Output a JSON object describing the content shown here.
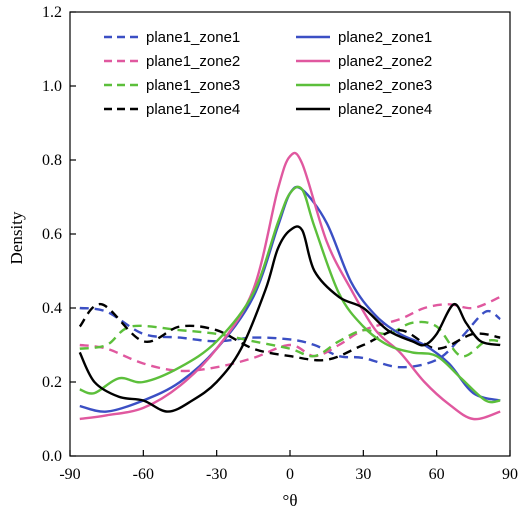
{
  "chart_data": {
    "type": "line",
    "title": "",
    "xlabel": "°θ",
    "ylabel": "Density",
    "xlim": [
      -90,
      90
    ],
    "ylim": [
      0,
      1.2
    ],
    "x_ticks": [
      -90,
      -60,
      -30,
      0,
      30,
      60,
      90
    ],
    "y_ticks": [
      0.0,
      0.2,
      0.4,
      0.6,
      0.8,
      1.0,
      1.2
    ],
    "x_tick_labels": [
      "-90",
      "-60",
      "-30",
      "0",
      "30",
      "60",
      "90"
    ],
    "y_tick_labels": [
      "0.0",
      "0.2",
      "0.4",
      "0.6",
      "0.8",
      "1.0",
      "1.2"
    ],
    "grid": false,
    "legend_position": "top",
    "series": [
      {
        "name": "plane1_zone1",
        "color": "#3b4fc4",
        "dash": "dashed",
        "x": [
          -86,
          -75,
          -60,
          -45,
          -30,
          -15,
          0,
          10,
          20,
          30,
          45,
          60,
          70,
          80,
          86
        ],
        "y": [
          0.4,
          0.39,
          0.33,
          0.32,
          0.31,
          0.32,
          0.315,
          0.3,
          0.27,
          0.265,
          0.24,
          0.26,
          0.32,
          0.39,
          0.37
        ]
      },
      {
        "name": "plane1_zone2",
        "color": "#e0589f",
        "dash": "dashed",
        "x": [
          -86,
          -75,
          -60,
          -45,
          -30,
          -15,
          0,
          10,
          20,
          30,
          45,
          55,
          65,
          75,
          86
        ],
        "y": [
          0.3,
          0.29,
          0.25,
          0.23,
          0.24,
          0.265,
          0.3,
          0.27,
          0.3,
          0.34,
          0.37,
          0.4,
          0.41,
          0.4,
          0.43
        ]
      },
      {
        "name": "plane1_zone3",
        "color": "#5cbf3b",
        "dash": "dashed",
        "x": [
          -86,
          -75,
          -65,
          -45,
          -30,
          -15,
          0,
          10,
          20,
          30,
          40,
          50,
          60,
          70,
          80,
          86
        ],
        "y": [
          0.29,
          0.3,
          0.35,
          0.34,
          0.33,
          0.31,
          0.29,
          0.27,
          0.31,
          0.34,
          0.33,
          0.36,
          0.35,
          0.27,
          0.31,
          0.31
        ]
      },
      {
        "name": "plane1_zone4",
        "color": "#000000",
        "dash": "dashed",
        "x": [
          -86,
          -77,
          -60,
          -45,
          -30,
          -15,
          0,
          15,
          30,
          45,
          60,
          75,
          86
        ],
        "y": [
          0.35,
          0.41,
          0.31,
          0.35,
          0.34,
          0.29,
          0.27,
          0.26,
          0.3,
          0.34,
          0.29,
          0.33,
          0.32
        ]
      },
      {
        "name": "plane2_zone1",
        "color": "#3b4fc4",
        "dash": "solid",
        "x": [
          -86,
          -75,
          -60,
          -45,
          -30,
          -15,
          -5,
          0,
          5,
          15,
          25,
          35,
          45,
          55,
          65,
          75,
          86
        ],
        "y": [
          0.135,
          0.12,
          0.15,
          0.2,
          0.29,
          0.43,
          0.62,
          0.71,
          0.72,
          0.63,
          0.47,
          0.38,
          0.33,
          0.3,
          0.25,
          0.17,
          0.15
        ]
      },
      {
        "name": "plane2_zone2",
        "color": "#e0589f",
        "dash": "solid",
        "x": [
          -86,
          -75,
          -60,
          -45,
          -30,
          -15,
          -5,
          0,
          5,
          15,
          25,
          35,
          45,
          55,
          65,
          75,
          86
        ],
        "y": [
          0.1,
          0.11,
          0.13,
          0.19,
          0.29,
          0.45,
          0.72,
          0.81,
          0.79,
          0.58,
          0.45,
          0.34,
          0.28,
          0.2,
          0.14,
          0.1,
          0.12
        ]
      },
      {
        "name": "plane2_zone3",
        "color": "#5cbf3b",
        "dash": "solid",
        "x": [
          -86,
          -80,
          -70,
          -60,
          -45,
          -30,
          -15,
          -5,
          0,
          5,
          10,
          20,
          30,
          40,
          50,
          60,
          70,
          80,
          86
        ],
        "y": [
          0.18,
          0.17,
          0.21,
          0.2,
          0.24,
          0.31,
          0.44,
          0.63,
          0.71,
          0.72,
          0.62,
          0.44,
          0.35,
          0.3,
          0.28,
          0.27,
          0.21,
          0.15,
          0.15
        ]
      },
      {
        "name": "plane2_zone4",
        "color": "#000000",
        "dash": "solid",
        "x": [
          -86,
          -80,
          -70,
          -60,
          -50,
          -40,
          -30,
          -20,
          -10,
          -5,
          0,
          5,
          10,
          20,
          30,
          40,
          50,
          55,
          60,
          67,
          72,
          78,
          86
        ],
        "y": [
          0.28,
          0.2,
          0.16,
          0.15,
          0.12,
          0.15,
          0.2,
          0.29,
          0.45,
          0.56,
          0.61,
          0.61,
          0.5,
          0.43,
          0.4,
          0.34,
          0.31,
          0.3,
          0.33,
          0.41,
          0.36,
          0.31,
          0.3
        ]
      }
    ]
  }
}
